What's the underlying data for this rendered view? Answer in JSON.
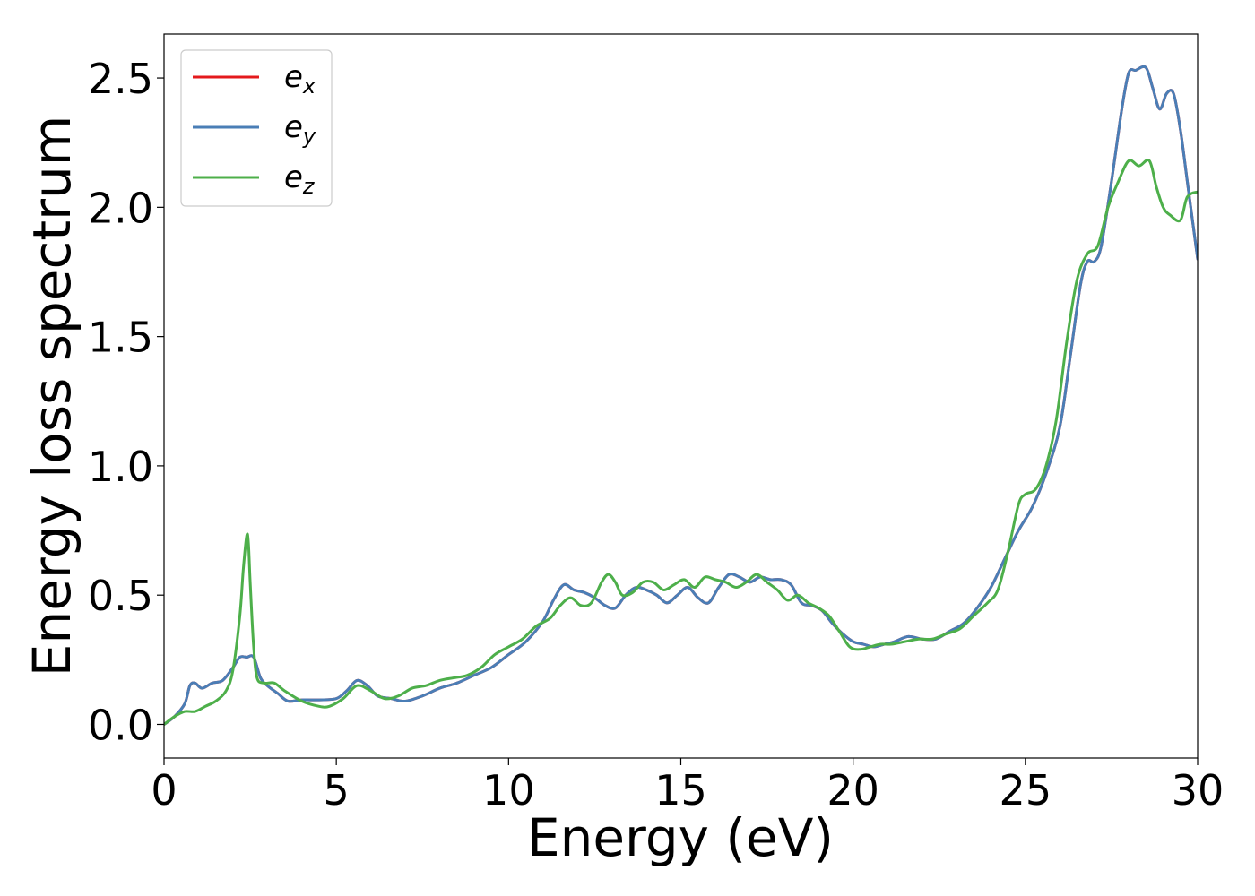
{
  "chart_data": {
    "type": "line",
    "xlabel": "Energy (eV)",
    "ylabel": "Energy loss spectrum",
    "xlim": [
      0,
      30
    ],
    "ylim": [
      -0.13,
      2.67
    ],
    "xticks": [
      0,
      5,
      10,
      15,
      20,
      25,
      30
    ],
    "xtick_labels": [
      "0",
      "5",
      "10",
      "15",
      "20",
      "25",
      "30"
    ],
    "yticks": [
      0.0,
      0.5,
      1.0,
      1.5,
      2.0,
      2.5
    ],
    "ytick_labels": [
      "0.0",
      "0.5",
      "1.0",
      "1.5",
      "2.0",
      "2.5"
    ],
    "grid": false,
    "legend_position": "top-left",
    "series": [
      {
        "name": "e_x",
        "legend_base": "e",
        "legend_sub": "x",
        "color": "#e41a1c",
        "x": [
          0,
          0.3,
          0.6,
          0.75,
          0.9,
          1.1,
          1.4,
          1.7,
          2.0,
          2.2,
          2.4,
          2.6,
          2.8,
          3.0,
          3.3,
          3.6,
          4.0,
          4.5,
          5.0,
          5.3,
          5.6,
          5.9,
          6.2,
          6.6,
          7.0,
          7.5,
          8.0,
          8.5,
          9.0,
          9.5,
          10.0,
          10.5,
          11.0,
          11.3,
          11.6,
          11.9,
          12.2,
          12.5,
          12.8,
          13.1,
          13.4,
          13.7,
          14.0,
          14.3,
          14.6,
          14.9,
          15.2,
          15.5,
          15.8,
          16.1,
          16.4,
          16.7,
          17.0,
          17.3,
          17.6,
          17.9,
          18.2,
          18.5,
          18.8,
          19.1,
          19.4,
          19.7,
          20.0,
          20.3,
          20.6,
          20.9,
          21.2,
          21.6,
          22.0,
          22.4,
          22.8,
          23.2,
          23.6,
          24.0,
          24.4,
          24.8,
          25.2,
          25.6,
          26.0,
          26.3,
          26.6,
          26.8,
          27.0,
          27.2,
          27.5,
          27.8,
          28.0,
          28.2,
          28.5,
          28.7,
          28.9,
          29.1,
          29.3,
          29.5,
          29.7,
          30.0
        ],
        "y": [
          0.0,
          0.03,
          0.08,
          0.15,
          0.16,
          0.14,
          0.16,
          0.17,
          0.22,
          0.26,
          0.26,
          0.26,
          0.18,
          0.15,
          0.12,
          0.09,
          0.095,
          0.095,
          0.1,
          0.13,
          0.17,
          0.15,
          0.11,
          0.1,
          0.09,
          0.11,
          0.14,
          0.16,
          0.19,
          0.22,
          0.27,
          0.32,
          0.4,
          0.48,
          0.54,
          0.52,
          0.51,
          0.49,
          0.46,
          0.45,
          0.5,
          0.53,
          0.52,
          0.5,
          0.47,
          0.5,
          0.53,
          0.49,
          0.47,
          0.53,
          0.58,
          0.57,
          0.55,
          0.57,
          0.56,
          0.56,
          0.54,
          0.47,
          0.46,
          0.44,
          0.39,
          0.35,
          0.32,
          0.31,
          0.3,
          0.31,
          0.32,
          0.34,
          0.33,
          0.33,
          0.36,
          0.39,
          0.45,
          0.53,
          0.64,
          0.75,
          0.84,
          0.97,
          1.15,
          1.42,
          1.7,
          1.79,
          1.79,
          1.85,
          2.1,
          2.38,
          2.52,
          2.53,
          2.54,
          2.46,
          2.38,
          2.44,
          2.44,
          2.3,
          2.1,
          1.8
        ]
      },
      {
        "name": "e_y",
        "legend_base": "e",
        "legend_sub": "y",
        "color": "#4a7eb6",
        "x": [
          0,
          0.3,
          0.6,
          0.75,
          0.9,
          1.1,
          1.4,
          1.7,
          2.0,
          2.2,
          2.4,
          2.6,
          2.8,
          3.0,
          3.3,
          3.6,
          4.0,
          4.5,
          5.0,
          5.3,
          5.6,
          5.9,
          6.2,
          6.6,
          7.0,
          7.5,
          8.0,
          8.5,
          9.0,
          9.5,
          10.0,
          10.5,
          11.0,
          11.3,
          11.6,
          11.9,
          12.2,
          12.5,
          12.8,
          13.1,
          13.4,
          13.7,
          14.0,
          14.3,
          14.6,
          14.9,
          15.2,
          15.5,
          15.8,
          16.1,
          16.4,
          16.7,
          17.0,
          17.3,
          17.6,
          17.9,
          18.2,
          18.5,
          18.8,
          19.1,
          19.4,
          19.7,
          20.0,
          20.3,
          20.6,
          20.9,
          21.2,
          21.6,
          22.0,
          22.4,
          22.8,
          23.2,
          23.6,
          24.0,
          24.4,
          24.8,
          25.2,
          25.6,
          26.0,
          26.3,
          26.6,
          26.8,
          27.0,
          27.2,
          27.5,
          27.8,
          28.0,
          28.2,
          28.5,
          28.7,
          28.9,
          29.1,
          29.3,
          29.5,
          29.7,
          30.0
        ],
        "y": [
          0.0,
          0.03,
          0.08,
          0.15,
          0.16,
          0.14,
          0.16,
          0.17,
          0.22,
          0.26,
          0.26,
          0.26,
          0.18,
          0.15,
          0.12,
          0.09,
          0.095,
          0.095,
          0.1,
          0.13,
          0.17,
          0.15,
          0.11,
          0.1,
          0.09,
          0.11,
          0.14,
          0.16,
          0.19,
          0.22,
          0.27,
          0.32,
          0.4,
          0.48,
          0.54,
          0.52,
          0.51,
          0.49,
          0.46,
          0.45,
          0.5,
          0.53,
          0.52,
          0.5,
          0.47,
          0.5,
          0.53,
          0.49,
          0.47,
          0.53,
          0.58,
          0.57,
          0.55,
          0.57,
          0.56,
          0.56,
          0.54,
          0.47,
          0.46,
          0.44,
          0.39,
          0.35,
          0.32,
          0.31,
          0.3,
          0.31,
          0.32,
          0.34,
          0.33,
          0.33,
          0.36,
          0.39,
          0.45,
          0.53,
          0.64,
          0.75,
          0.84,
          0.97,
          1.15,
          1.42,
          1.7,
          1.79,
          1.79,
          1.85,
          2.1,
          2.38,
          2.52,
          2.53,
          2.54,
          2.46,
          2.38,
          2.44,
          2.44,
          2.3,
          2.1,
          1.8
        ]
      },
      {
        "name": "e_z",
        "legend_base": "e",
        "legend_sub": "z",
        "color": "#4daf4a",
        "x": [
          0,
          0.3,
          0.6,
          0.9,
          1.2,
          1.5,
          1.8,
          2.0,
          2.2,
          2.3,
          2.4,
          2.45,
          2.5,
          2.6,
          2.7,
          2.9,
          3.2,
          3.5,
          4.0,
          4.5,
          4.8,
          5.2,
          5.6,
          6.0,
          6.4,
          6.8,
          7.2,
          7.6,
          8.0,
          8.4,
          8.8,
          9.2,
          9.6,
          10.0,
          10.4,
          10.8,
          11.2,
          11.5,
          11.8,
          12.1,
          12.4,
          12.7,
          12.9,
          13.1,
          13.3,
          13.6,
          13.9,
          14.2,
          14.5,
          14.8,
          15.1,
          15.4,
          15.7,
          16.0,
          16.3,
          16.6,
          16.9,
          17.2,
          17.5,
          17.8,
          18.1,
          18.4,
          18.7,
          19.0,
          19.3,
          19.6,
          19.9,
          20.2,
          20.5,
          20.8,
          21.1,
          21.5,
          21.9,
          22.3,
          22.7,
          23.1,
          23.5,
          23.9,
          24.2,
          24.5,
          24.8,
          25.0,
          25.3,
          25.6,
          25.9,
          26.2,
          26.5,
          26.8,
          27.1,
          27.4,
          27.7,
          28.0,
          28.3,
          28.6,
          28.8,
          29.0,
          29.2,
          29.5,
          29.7,
          30.0
        ],
        "y": [
          0.0,
          0.03,
          0.05,
          0.05,
          0.07,
          0.09,
          0.13,
          0.21,
          0.42,
          0.6,
          0.73,
          0.7,
          0.55,
          0.3,
          0.18,
          0.16,
          0.16,
          0.13,
          0.09,
          0.07,
          0.07,
          0.1,
          0.15,
          0.13,
          0.1,
          0.11,
          0.14,
          0.15,
          0.17,
          0.18,
          0.19,
          0.22,
          0.27,
          0.3,
          0.33,
          0.38,
          0.41,
          0.46,
          0.49,
          0.46,
          0.47,
          0.55,
          0.58,
          0.55,
          0.5,
          0.51,
          0.55,
          0.55,
          0.52,
          0.54,
          0.56,
          0.53,
          0.57,
          0.56,
          0.55,
          0.53,
          0.55,
          0.58,
          0.55,
          0.52,
          0.48,
          0.5,
          0.47,
          0.45,
          0.42,
          0.36,
          0.3,
          0.29,
          0.3,
          0.31,
          0.31,
          0.32,
          0.33,
          0.33,
          0.35,
          0.37,
          0.42,
          0.47,
          0.52,
          0.67,
          0.85,
          0.89,
          0.91,
          1.0,
          1.18,
          1.48,
          1.72,
          1.82,
          1.85,
          2.0,
          2.1,
          2.18,
          2.16,
          2.18,
          2.08,
          2.0,
          1.97,
          1.95,
          2.04,
          2.06
        ]
      }
    ]
  }
}
